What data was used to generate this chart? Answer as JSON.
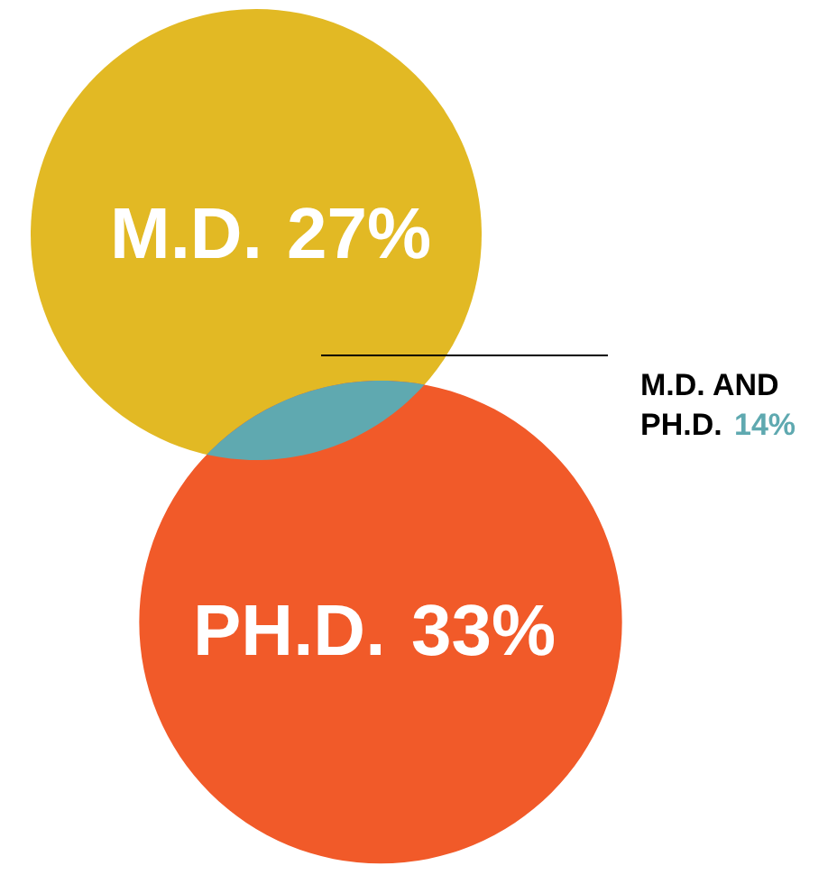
{
  "chart_data": {
    "type": "other",
    "categories": [
      "M.D.",
      "PH.D.",
      "M.D. AND PH.D."
    ],
    "values": [
      27,
      33,
      14
    ],
    "value_labels": [
      "27%",
      "33%",
      "14%"
    ],
    "colors": [
      "#e2b924",
      "#f15a29",
      "#5fa9b0"
    ]
  }
}
